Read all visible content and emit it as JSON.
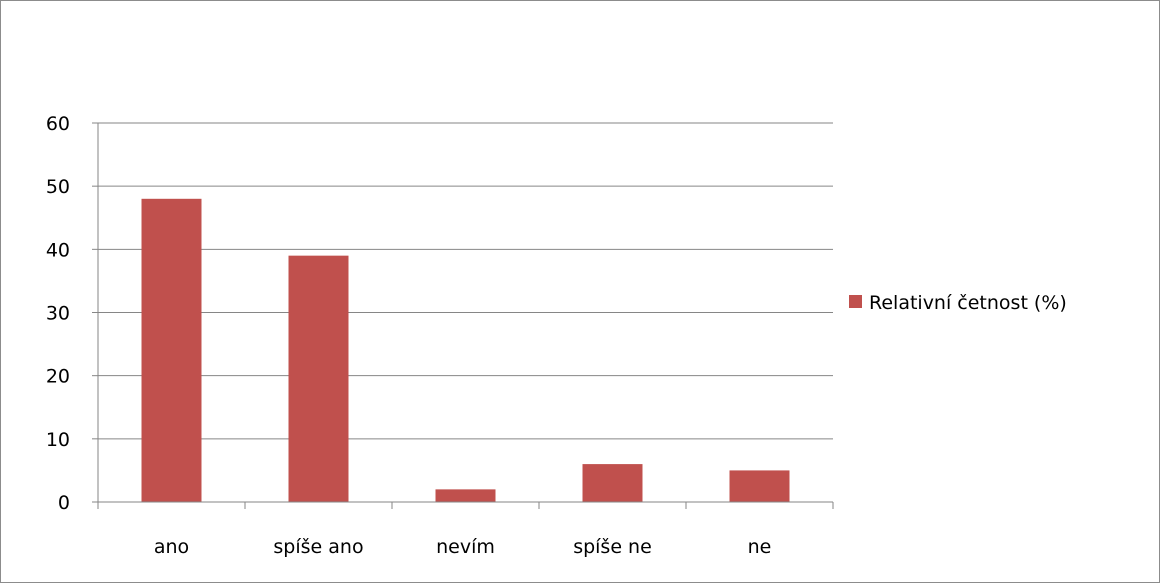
{
  "chart_data": {
    "type": "bar",
    "title": "",
    "xlabel": "",
    "ylabel": "",
    "categories": [
      "ano",
      "spíše ano",
      "nevím",
      "spíše ne",
      "ne"
    ],
    "series": [
      {
        "name": "Relativní četnost (%)",
        "values": [
          48,
          39,
          2,
          6,
          5
        ],
        "color": "#c0504d"
      }
    ],
    "ylim": [
      0,
      60
    ],
    "yticks": [
      0,
      10,
      20,
      30,
      40,
      50,
      60
    ],
    "grid": true,
    "legend_position": "right"
  },
  "colors": {
    "bar": "#c0504d",
    "grid": "#868686",
    "axis": "#868686",
    "frame": "#8c8c8c"
  }
}
